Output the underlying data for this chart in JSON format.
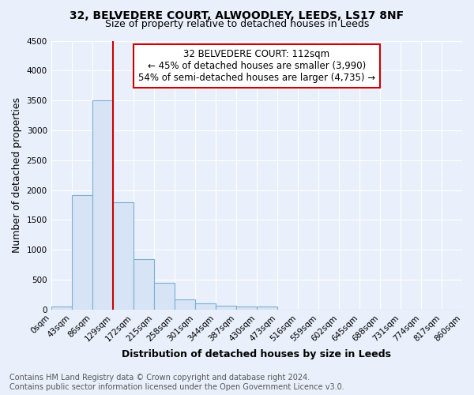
{
  "title_line1": "32, BELVEDERE COURT, ALWOODLEY, LEEDS, LS17 8NF",
  "title_line2": "Size of property relative to detached houses in Leeds",
  "xlabel": "Distribution of detached houses by size in Leeds",
  "ylabel": "Number of detached properties",
  "annotation_line1": "32 BELVEDERE COURT: 112sqm",
  "annotation_line2": "← 45% of detached houses are smaller (3,990)",
  "annotation_line3": "54% of semi-detached houses are larger (4,735) →",
  "footer_line1": "Contains HM Land Registry data © Crown copyright and database right 2024.",
  "footer_line2": "Contains public sector information licensed under the Open Government Licence v3.0.",
  "bin_labels": [
    "0sqm",
    "43sqm",
    "86sqm",
    "129sqm",
    "172sqm",
    "215sqm",
    "258sqm",
    "301sqm",
    "344sqm",
    "387sqm",
    "430sqm",
    "473sqm",
    "516sqm",
    "559sqm",
    "602sqm",
    "645sqm",
    "688sqm",
    "731sqm",
    "774sqm",
    "817sqm",
    "860sqm"
  ],
  "bar_values": [
    50,
    1920,
    3500,
    1800,
    840,
    450,
    170,
    110,
    65,
    55,
    55,
    0,
    0,
    0,
    0,
    0,
    0,
    0,
    0,
    0
  ],
  "bar_color": "#d6e4f5",
  "bar_edge_color": "#7bafd4",
  "vline_x": 3.0,
  "ylim": [
    0,
    4500
  ],
  "yticks": [
    0,
    500,
    1000,
    1500,
    2000,
    2500,
    3000,
    3500,
    4000,
    4500
  ],
  "background_color": "#eaf0fb",
  "plot_bg_color": "#eaf0fb",
  "annotation_box_color": "#ffffff",
  "annotation_box_edge": "#cc0000",
  "vline_color": "#cc0000",
  "grid_color": "#ffffff",
  "title_fontsize": 10,
  "subtitle_fontsize": 9,
  "axis_label_fontsize": 9,
  "tick_fontsize": 7.5,
  "annotation_fontsize": 8.5,
  "footer_fontsize": 7
}
